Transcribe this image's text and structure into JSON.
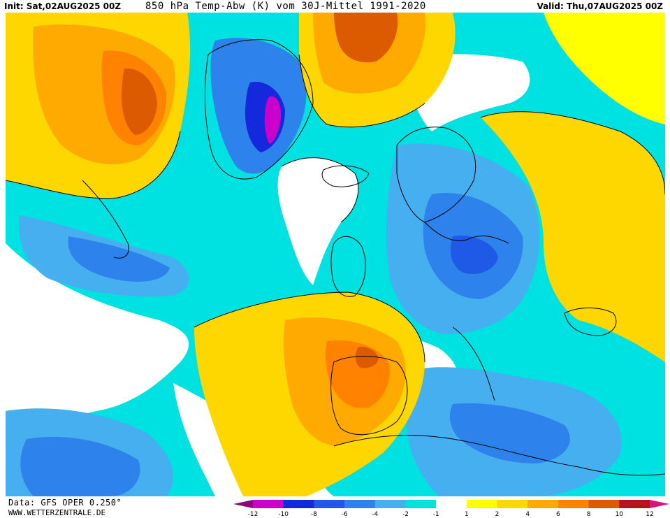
{
  "header": {
    "init": "Init: Sat,02AUG2025 00Z",
    "title": "850 hPa Temp-Abw (K) vom 30J-Mittel 1991-2020",
    "valid": "Valid: Thu,07AUG2025 00Z"
  },
  "footer": {
    "source": "Data: GFS OPER 0.250°",
    "site": "WWW.WETTERZENTRALE.DE"
  },
  "legend": {
    "colors": [
      "#8b0a78",
      "#cc00cc",
      "#1428dc",
      "#1e5ae6",
      "#2d82eb",
      "#46aff0",
      "#00e1e1",
      "#ffffff",
      "#ffff00",
      "#ffd700",
      "#ffaa00",
      "#ff8200",
      "#dc5a00",
      "#b4141e",
      "#dc1478"
    ],
    "labels": [
      "-12",
      "-10",
      "-8",
      "-6",
      "-4",
      "-2",
      "-1",
      "1",
      "2",
      "4",
      "6",
      "8",
      "10",
      "12"
    ]
  },
  "map": {
    "colors": {
      "ocean_white": "#ffffff",
      "cold_light": "#00e1e1",
      "cold_mid": "#46aff0",
      "cold_deep": "#2d82eb",
      "cold_strong": "#1e5ae6",
      "cold_extreme": "#1428dc",
      "cold_purple": "#cc00cc",
      "warm_yellow": "#ffff00",
      "warm_gold": "#ffd700",
      "warm_orange": "#ffaa00",
      "warm_deep": "#ff8200",
      "warm_red": "#dc5a00",
      "warm_dark": "#b4141e"
    }
  }
}
